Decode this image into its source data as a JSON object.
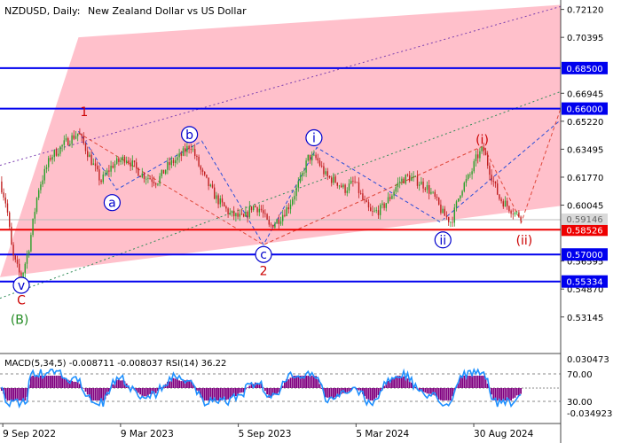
{
  "header": {
    "symbol": "NZDUSD, Daily:",
    "description": "New Zealand Dollar vs US Dollar"
  },
  "chart_data": [
    {
      "type": "candlestick",
      "title": "NZDUSD, Daily:  New Zealand Dollar vs US Dollar",
      "ylim": [
        0.51,
        0.727
      ],
      "y_ticks": [
        "0.72120",
        "0.70395",
        "0.66945",
        "0.65220",
        "0.63495",
        "0.61770",
        "0.60045",
        "0.56595",
        "0.54870",
        "0.53145"
      ],
      "x_ticks": [
        "9 Sep 2022",
        "9 Mar 2023",
        "5 Sep 2023",
        "5 Mar 2024",
        "30 Aug 2024"
      ],
      "x_ticks_frac": [
        0.005,
        0.215,
        0.425,
        0.635,
        0.845
      ],
      "price_path": [
        [
          0.0,
          0.615
        ],
        [
          0.012,
          0.6
        ],
        [
          0.022,
          0.57
        ],
        [
          0.038,
          0.555
        ],
        [
          0.052,
          0.575
        ],
        [
          0.068,
          0.61
        ],
        [
          0.09,
          0.63
        ],
        [
          0.105,
          0.635
        ],
        [
          0.12,
          0.64
        ],
        [
          0.14,
          0.645
        ],
        [
          0.16,
          0.63
        ],
        [
          0.18,
          0.615
        ],
        [
          0.2,
          0.625
        ],
        [
          0.225,
          0.63
        ],
        [
          0.25,
          0.62
        ],
        [
          0.28,
          0.615
        ],
        [
          0.3,
          0.625
        ],
        [
          0.32,
          0.63
        ],
        [
          0.34,
          0.638
        ],
        [
          0.36,
          0.62
        ],
        [
          0.385,
          0.605
        ],
        [
          0.41,
          0.595
        ],
        [
          0.435,
          0.592
        ],
        [
          0.45,
          0.6
        ],
        [
          0.465,
          0.598
        ],
        [
          0.48,
          0.587
        ],
        [
          0.498,
          0.592
        ],
        [
          0.515,
          0.6
        ],
        [
          0.535,
          0.615
        ],
        [
          0.55,
          0.63
        ],
        [
          0.565,
          0.629
        ],
        [
          0.582,
          0.618
        ],
        [
          0.6,
          0.615
        ],
        [
          0.615,
          0.61
        ],
        [
          0.632,
          0.615
        ],
        [
          0.648,
          0.603
        ],
        [
          0.662,
          0.595
        ],
        [
          0.68,
          0.598
        ],
        [
          0.695,
          0.605
        ],
        [
          0.712,
          0.615
        ],
        [
          0.728,
          0.618
        ],
        [
          0.745,
          0.615
        ],
        [
          0.76,
          0.612
        ],
        [
          0.775,
          0.605
        ],
        [
          0.79,
          0.595
        ],
        [
          0.805,
          0.59
        ],
        [
          0.822,
          0.61
        ],
        [
          0.84,
          0.62
        ],
        [
          0.85,
          0.63
        ],
        [
          0.862,
          0.635
        ],
        [
          0.875,
          0.62
        ],
        [
          0.89,
          0.605
        ],
        [
          0.905,
          0.6
        ],
        [
          0.92,
          0.595
        ],
        [
          0.93,
          0.594
        ]
      ],
      "channel_fill": {
        "color": "#ffc0cb",
        "points": [
          [
            0.0,
            0.556
          ],
          [
            0.14,
            0.704
          ],
          [
            1.0,
            0.724
          ],
          [
            1.0,
            0.6
          ]
        ]
      },
      "horizontal_lines": [
        {
          "label": "0.68500",
          "value": 0.685,
          "color": "#0000ee"
        },
        {
          "label": "0.66000",
          "value": 0.66,
          "color": "#0000ee"
        },
        {
          "label": "0.58526",
          "value": 0.58526,
          "color": "#ee0000"
        },
        {
          "label": "0.57000",
          "value": 0.57,
          "color": "#0000ee"
        },
        {
          "label": "0.55334",
          "value": 0.55334,
          "color": "#0000ee"
        }
      ],
      "current_price": {
        "label": "0.59146",
        "value": 0.59146
      },
      "trend_lines": [
        {
          "style": "purple-dotted",
          "points": [
            [
              0.0,
              0.625
            ],
            [
              1.0,
              0.723
            ]
          ]
        },
        {
          "style": "green-dotted",
          "points": [
            [
              0.0,
              0.543
            ],
            [
              1.0,
              0.6705
            ]
          ]
        },
        {
          "style": "blue-dashed",
          "points": [
            [
              0.14,
              0.646
            ],
            [
              0.208,
              0.61
            ],
            [
              0.36,
              0.64
            ],
            [
              0.47,
              0.576
            ],
            [
              0.565,
              0.636
            ],
            [
              0.785,
              0.59
            ],
            [
              1.0,
              0.653
            ]
          ]
        },
        {
          "style": "red-dashed",
          "points": [
            [
              0.14,
              0.645
            ],
            [
              0.47,
              0.576
            ],
            [
              0.862,
              0.637
            ],
            [
              0.93,
              0.59
            ],
            [
              1.0,
              0.66
            ]
          ]
        }
      ],
      "wave_labels": [
        {
          "text": "1",
          "at": [
            0.15,
            0.658
          ],
          "color": "#cc0000",
          "circled": false
        },
        {
          "text": "a",
          "at": [
            0.2,
            0.602
          ],
          "color": "#0000cc",
          "circled": true
        },
        {
          "text": "b",
          "at": [
            0.338,
            0.644
          ],
          "color": "#0000cc",
          "circled": true
        },
        {
          "text": "i",
          "at": [
            0.56,
            0.642
          ],
          "color": "#0000cc",
          "circled": true
        },
        {
          "text": "(i)",
          "at": [
            0.86,
            0.641
          ],
          "color": "#cc0000",
          "circled": false
        },
        {
          "text": "c",
          "at": [
            0.47,
            0.57
          ],
          "color": "#0000cc",
          "circled": true
        },
        {
          "text": "2",
          "at": [
            0.47,
            0.56
          ],
          "color": "#cc0000",
          "circled": false
        },
        {
          "text": "ii",
          "at": [
            0.79,
            0.579
          ],
          "color": "#0000cc",
          "circled": true
        },
        {
          "text": "(ii)",
          "at": [
            0.935,
            0.579
          ],
          "color": "#cc0000",
          "circled": false
        },
        {
          "text": "v",
          "at": [
            0.038,
            0.551
          ],
          "color": "#0000cc",
          "circled": true
        },
        {
          "text": "C",
          "at": [
            0.038,
            0.542
          ],
          "color": "#cc0000",
          "circled": false
        },
        {
          "text": "(B)",
          "at": [
            0.035,
            0.53
          ],
          "color": "#228b22",
          "circled": false
        }
      ]
    },
    {
      "type": "indicator",
      "label": "MACD(5,34,5) -0.008711 -0.008037 RSI(14) 36.22",
      "y_ticks": [
        "0.030473",
        "-0.034923"
      ],
      "rsi_levels": [
        "70.00",
        "30.00"
      ],
      "macd_color": "#800080",
      "rsi_color": "#1e90ff"
    }
  ]
}
